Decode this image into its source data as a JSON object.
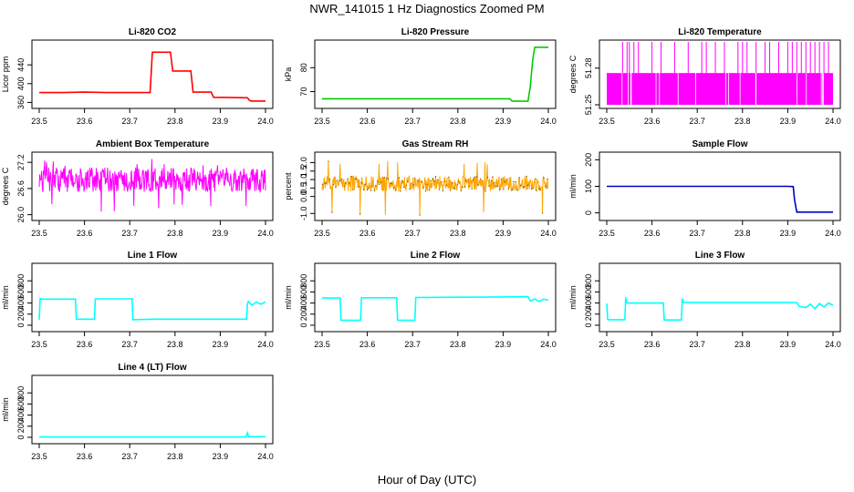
{
  "figure": {
    "title": "NWR_141015  1 Hz Diagnostics Zoomed PM",
    "xlabel": "Hour of Day (UTC)"
  },
  "chart_data": [
    {
      "id": "co2",
      "type": "line",
      "title": "Li-820 CO2",
      "ylabel": "Licor ppm",
      "xlabel": "",
      "xlim": [
        23.5,
        24.0
      ],
      "ylim": [
        355,
        485
      ],
      "xticks": [
        23.5,
        23.6,
        23.7,
        23.8,
        23.9,
        24.0
      ],
      "yticks": [
        360,
        400,
        440
      ],
      "color": "#ff0000",
      "series": [
        {
          "style": "line",
          "color": "#ff0000",
          "x": [
            23.5,
            23.55,
            23.6,
            23.65,
            23.7,
            23.745,
            23.75,
            23.79,
            23.795,
            23.835,
            23.84,
            23.88,
            23.885,
            23.96,
            23.965,
            23.97,
            24.0
          ],
          "y": [
            381,
            381,
            382,
            381,
            381,
            381,
            467,
            467,
            427,
            427,
            382,
            382,
            371,
            370,
            364,
            363,
            363
          ]
        }
      ]
    },
    {
      "id": "pressure",
      "type": "line",
      "title": "Li-820 Pressure",
      "ylabel": "kPa",
      "xlabel": "",
      "xlim": [
        23.5,
        24.0
      ],
      "ylim": [
        64.5,
        90
      ],
      "xticks": [
        23.5,
        23.6,
        23.7,
        23.8,
        23.9,
        24.0
      ],
      "yticks": [
        70,
        80
      ],
      "color": "#00cc00",
      "series": [
        {
          "style": "line",
          "color": "#00cc00",
          "x": [
            23.5,
            23.6,
            23.7,
            23.8,
            23.9,
            23.915,
            23.92,
            23.955,
            23.96,
            23.963,
            23.966,
            23.97,
            23.98,
            24.0
          ],
          "y": [
            67,
            67,
            67,
            67,
            67,
            67,
            66,
            66,
            72,
            78,
            84,
            88.5,
            88.5,
            88.5
          ]
        }
      ]
    },
    {
      "id": "licor_temp",
      "type": "line",
      "title": "Li-820 Temperature",
      "ylabel": "degrees C",
      "xlabel": "",
      "xlim": [
        23.5,
        24.0
      ],
      "ylim": [
        51.25,
        51.3
      ],
      "xticks": [
        23.5,
        23.6,
        23.7,
        23.8,
        23.9,
        24.0
      ],
      "yticks": [
        51.25,
        51.28
      ],
      "color": "#ff00ff",
      "bands": [
        {
          "x0": 23.5,
          "x1": 24.0,
          "y0": 51.25,
          "y1": 51.276
        }
      ],
      "spikes": {
        "y": 51.3,
        "x": [
          23.535,
          23.545,
          23.55,
          23.56,
          23.57,
          23.6,
          23.62,
          23.65,
          23.68,
          23.71,
          23.72,
          23.74,
          23.76,
          23.79,
          23.8,
          23.81,
          23.83,
          23.85,
          23.86,
          23.88,
          23.9,
          23.91,
          23.92,
          23.93,
          23.94,
          23.95,
          23.96,
          23.97,
          23.98,
          23.99
        ]
      }
    },
    {
      "id": "box_temp",
      "type": "line",
      "title": "Ambient Box Temperature",
      "ylabel": "degrees C",
      "xlabel": "",
      "xlim": [
        23.5,
        24.0
      ],
      "ylim": [
        25.95,
        27.35
      ],
      "xticks": [
        23.5,
        23.6,
        23.7,
        23.8,
        23.9,
        24.0
      ],
      "yticks": [
        26.0,
        26.6,
        27.2
      ],
      "color": "#ff00ff",
      "noise": {
        "center": 26.8,
        "amp": 0.28,
        "lo": 26.05,
        "hi": 27.3,
        "n": 500
      }
    },
    {
      "id": "rh",
      "type": "line",
      "title": "Gas Stream RH",
      "ylabel": "percent",
      "xlabel": "",
      "xlim": [
        23.5,
        24.0
      ],
      "ylim": [
        -1.2,
        2.4
      ],
      "xticks": [
        23.5,
        23.6,
        23.7,
        23.8,
        23.9,
        24.0
      ],
      "yticks": [
        -1.0,
        0.0,
        0.5,
        1.0,
        1.5,
        2.0
      ],
      "color": "#ffa500",
      "noise": {
        "center": 0.75,
        "amp": 0.45,
        "lo": -1.1,
        "hi": 2.1,
        "n": 500,
        "dots": true
      }
    },
    {
      "id": "sample_flow",
      "type": "line",
      "title": "Sample Flow",
      "ylabel": "ml/min",
      "xlabel": "",
      "xlim": [
        23.5,
        24.0
      ],
      "ylim": [
        -15,
        215
      ],
      "xticks": [
        23.5,
        23.6,
        23.7,
        23.8,
        23.9,
        24.0
      ],
      "yticks": [
        0,
        100,
        200
      ],
      "color": "#0000cc",
      "series": [
        {
          "style": "line",
          "color": "#0000cc",
          "x": [
            23.5,
            23.6,
            23.7,
            23.8,
            23.9,
            23.912,
            23.915,
            23.92,
            23.95,
            24.0
          ],
          "y": [
            100,
            100,
            100,
            100,
            100,
            99,
            50,
            3,
            3,
            3
          ]
        }
      ]
    },
    {
      "id": "line1",
      "type": "line",
      "title": "Line 1 Flow",
      "ylabel": "ml/min",
      "xlabel": "",
      "xlim": [
        23.5,
        24.0
      ],
      "ylim": [
        -50,
        1050
      ],
      "xticks": [
        23.5,
        23.6,
        23.7,
        23.8,
        23.9,
        24.0
      ],
      "yticks": [
        0,
        200,
        400,
        600,
        800
      ],
      "color": "#00ffff",
      "series": [
        {
          "style": "line",
          "color": "#00ffff",
          "x": [
            23.5,
            23.502,
            23.505,
            23.58,
            23.582,
            23.622,
            23.624,
            23.705,
            23.707,
            23.75,
            23.8,
            23.9,
            23.958,
            23.96,
            23.962,
            23.97,
            23.98,
            23.99,
            24.0
          ],
          "y": [
            100,
            480,
            470,
            470,
            110,
            110,
            475,
            475,
            100,
            110,
            110,
            110,
            110,
            380,
            430,
            360,
            420,
            380,
            420
          ]
        }
      ]
    },
    {
      "id": "line2",
      "type": "line",
      "title": "Line 2 Flow",
      "ylabel": "ml/min",
      "xlabel": "",
      "xlim": [
        23.5,
        24.0
      ],
      "ylim": [
        -50,
        1050
      ],
      "xticks": [
        23.5,
        23.6,
        23.7,
        23.8,
        23.9,
        24.0
      ],
      "yticks": [
        0,
        200,
        400,
        600,
        800
      ],
      "color": "#00ffff",
      "series": [
        {
          "style": "line",
          "color": "#00ffff",
          "x": [
            23.5,
            23.54,
            23.542,
            23.585,
            23.587,
            23.665,
            23.667,
            23.705,
            23.707,
            23.8,
            23.9,
            23.955,
            23.96,
            23.97,
            23.98,
            23.99,
            24.0
          ],
          "y": [
            490,
            490,
            90,
            90,
            495,
            495,
            90,
            90,
            500,
            505,
            510,
            515,
            440,
            470,
            430,
            470,
            450
          ]
        }
      ]
    },
    {
      "id": "line3",
      "type": "line",
      "title": "Line 3 Flow",
      "ylabel": "ml/min",
      "xlabel": "",
      "xlim": [
        23.5,
        24.0
      ],
      "ylim": [
        -50,
        1050
      ],
      "xticks": [
        23.5,
        23.6,
        23.7,
        23.8,
        23.9,
        24.0
      ],
      "yticks": [
        0,
        200,
        400,
        600,
        800
      ],
      "color": "#00ffff",
      "series": [
        {
          "style": "line",
          "color": "#00ffff",
          "x": [
            23.5,
            23.502,
            23.504,
            23.54,
            23.542,
            23.545,
            23.625,
            23.627,
            23.665,
            23.667,
            23.67,
            23.8,
            23.92,
            23.925,
            23.94,
            23.95,
            23.96,
            23.97,
            23.98,
            23.99,
            24.0
          ],
          "y": [
            390,
            110,
            100,
            100,
            500,
            400,
            400,
            95,
            95,
            480,
            410,
            410,
            410,
            340,
            320,
            380,
            300,
            390,
            330,
            400,
            360
          ]
        }
      ]
    },
    {
      "id": "line4",
      "type": "line",
      "title": "Line 4 (LT) Flow",
      "ylabel": "ml/min",
      "xlabel": "",
      "xlim": [
        23.5,
        24.0
      ],
      "ylim": [
        -50,
        1050
      ],
      "xticks": [
        23.5,
        23.6,
        23.7,
        23.8,
        23.9,
        24.0
      ],
      "yticks": [
        0,
        200,
        400,
        600,
        800
      ],
      "color": "#00ffff",
      "series": [
        {
          "style": "line",
          "color": "#00ffff",
          "x": [
            23.5,
            23.6,
            23.7,
            23.8,
            23.9,
            23.957,
            23.96,
            23.963,
            24.0
          ],
          "y": [
            5,
            5,
            5,
            5,
            5,
            5,
            80,
            10,
            10
          ]
        }
      ]
    }
  ]
}
